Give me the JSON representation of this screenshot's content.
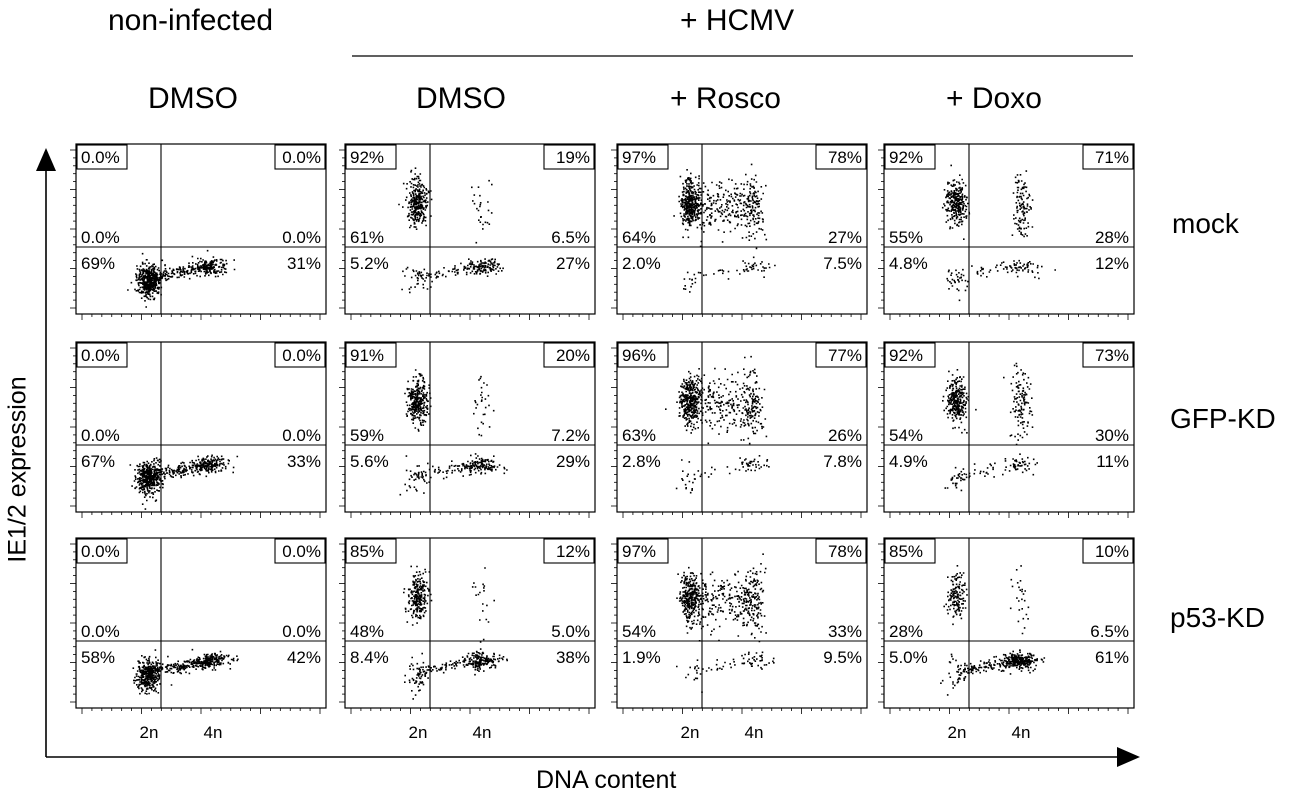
{
  "header": {
    "group_left": "non-infected",
    "group_right": "+ HCMV"
  },
  "columns": [
    "DMSO",
    "DMSO",
    "+ Rosco",
    "+ Doxo"
  ],
  "rows": [
    "mock",
    "GFP-KD",
    "p53-KD"
  ],
  "axes": {
    "xlabel": "DNA content",
    "ylabel": "IE1/2 expression",
    "xticks": [
      "2n",
      "4n"
    ]
  },
  "chart_data": {
    "type": "scatter",
    "description_level": "flow cytometry quadrant plots, 3 rows x 4 columns",
    "panels": [
      {
        "row": "mock",
        "column": "DMSO (non-infected)",
        "tl_box": "0.0%",
        "tr_box": "0.0%",
        "ul": "0.0%",
        "ur": "0.0%",
        "ll": "69%",
        "lr": "31%"
      },
      {
        "row": "mock",
        "column": "DMSO",
        "tl_box": "92%",
        "tr_box": "19%",
        "ul": "61%",
        "ur": "6.5%",
        "ll": "5.2%",
        "lr": "27%"
      },
      {
        "row": "mock",
        "column": "+ Rosco",
        "tl_box": "97%",
        "tr_box": "78%",
        "ul": "64%",
        "ur": "27%",
        "ll": "2.0%",
        "lr": "7.5%"
      },
      {
        "row": "mock",
        "column": "+ Doxo",
        "tl_box": "92%",
        "tr_box": "71%",
        "ul": "55%",
        "ur": "28%",
        "ll": "4.8%",
        "lr": "12%"
      },
      {
        "row": "GFP-KD",
        "column": "DMSO (non-infected)",
        "tl_box": "0.0%",
        "tr_box": "0.0%",
        "ul": "0.0%",
        "ur": "0.0%",
        "ll": "67%",
        "lr": "33%"
      },
      {
        "row": "GFP-KD",
        "column": "DMSO",
        "tl_box": "91%",
        "tr_box": "20%",
        "ul": "59%",
        "ur": "7.2%",
        "ll": "5.6%",
        "lr": "29%"
      },
      {
        "row": "GFP-KD",
        "column": "+ Rosco",
        "tl_box": "96%",
        "tr_box": "77%",
        "ul": "63%",
        "ur": "26%",
        "ll": "2.8%",
        "lr": "7.8%"
      },
      {
        "row": "GFP-KD",
        "column": "+ Doxo",
        "tl_box": "92%",
        "tr_box": "73%",
        "ul": "54%",
        "ur": "30%",
        "ll": "4.9%",
        "lr": "11%"
      },
      {
        "row": "p53-KD",
        "column": "DMSO (non-infected)",
        "tl_box": "0.0%",
        "tr_box": "0.0%",
        "ul": "0.0%",
        "ur": "0.0%",
        "ll": "58%",
        "lr": "42%"
      },
      {
        "row": "p53-KD",
        "column": "DMSO",
        "tl_box": "85%",
        "tr_box": "12%",
        "ul": "48%",
        "ur": "5.0%",
        "ll": "8.4%",
        "lr": "38%"
      },
      {
        "row": "p53-KD",
        "column": "+ Rosco",
        "tl_box": "97%",
        "tr_box": "78%",
        "ul": "54%",
        "ur": "33%",
        "ll": "1.9%",
        "lr": "9.5%"
      },
      {
        "row": "p53-KD",
        "column": "+ Doxo",
        "tl_box": "85%",
        "tr_box": "10%",
        "ul": "28%",
        "ur": "6.5%",
        "ll": "5.0%",
        "lr": "61%"
      }
    ]
  }
}
